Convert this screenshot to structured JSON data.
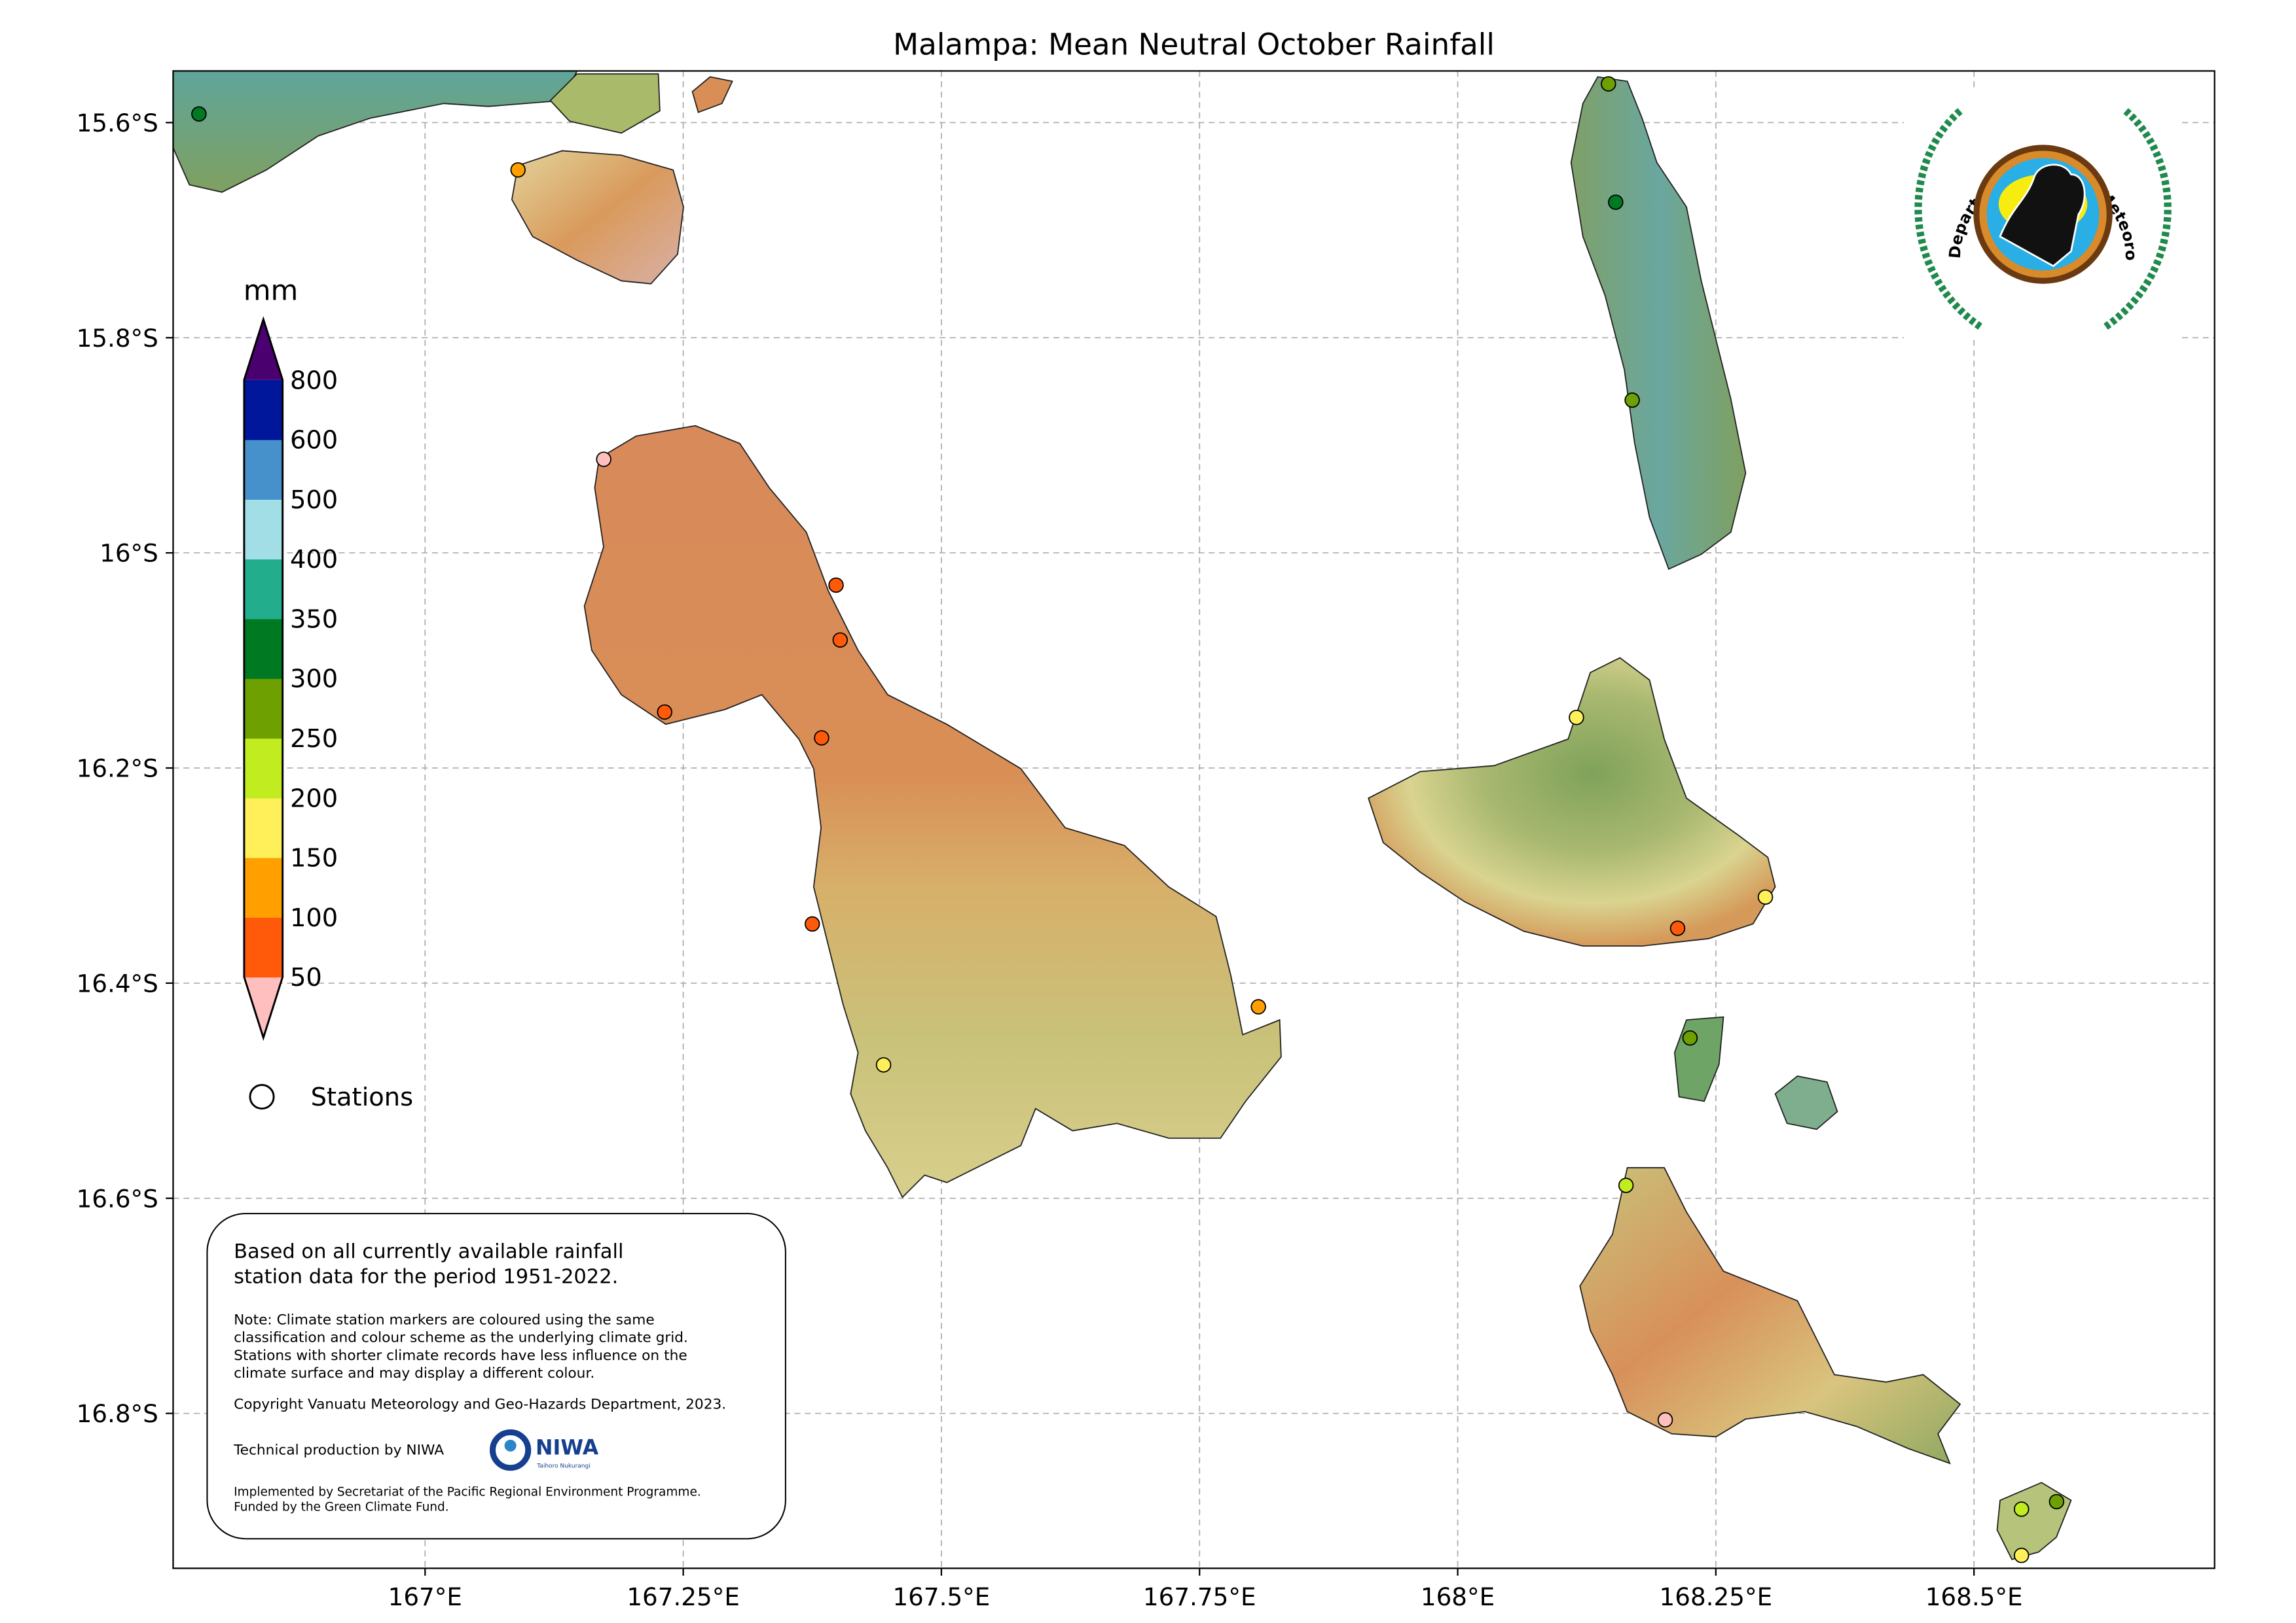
{
  "title": "Malampa: Mean Neutral October Rainfall",
  "axes": {
    "lon_ticks": [
      {
        "value": 167.0,
        "label": "167°E"
      },
      {
        "value": 167.25,
        "label": "167.25°E"
      },
      {
        "value": 167.5,
        "label": "167.5°E"
      },
      {
        "value": 167.75,
        "label": "167.75°E"
      },
      {
        "value": 168.0,
        "label": "168°E"
      },
      {
        "value": 168.25,
        "label": "168.25°E"
      },
      {
        "value": 168.5,
        "label": "168.5°E"
      }
    ],
    "lat_ticks": [
      {
        "value": 15.6,
        "label": "15.6°S"
      },
      {
        "value": 15.8,
        "label": "15.8°S"
      },
      {
        "value": 16.0,
        "label": "16°S"
      },
      {
        "value": 16.2,
        "label": "16.2°S"
      },
      {
        "value": 16.4,
        "label": "16.4°S"
      },
      {
        "value": 16.6,
        "label": "16.6°S"
      },
      {
        "value": 16.8,
        "label": "16.8°S"
      }
    ],
    "lon_range": [
      166.756,
      168.733
    ],
    "lat_range": [
      15.552,
      16.944
    ],
    "grid": true
  },
  "colorbar": {
    "unit": "mm",
    "labels": [
      "50",
      "100",
      "150",
      "200",
      "250",
      "300",
      "350",
      "400",
      "500",
      "600",
      "800"
    ],
    "colors": [
      "#ffbfbf",
      "#ff5a0a",
      "#ff9f00",
      "#fff05a",
      "#c0ec20",
      "#6da000",
      "#007a22",
      "#22ad8c",
      "#a1dee6",
      "#4690cc",
      "#00179c",
      "#4b0070"
    ],
    "extend": "both"
  },
  "legend": {
    "stations_label": "Stations"
  },
  "stations": [
    {
      "lon": 166.781,
      "lat": 15.592,
      "color": "#007a22"
    },
    {
      "lon": 167.09,
      "lat": 15.644,
      "color": "#ff9f00"
    },
    {
      "lon": 167.173,
      "lat": 15.913,
      "color": "#ffbfbf"
    },
    {
      "lon": 167.398,
      "lat": 16.03,
      "color": "#ff5a0a"
    },
    {
      "lon": 167.402,
      "lat": 16.081,
      "color": "#ff5a0a"
    },
    {
      "lon": 167.232,
      "lat": 16.148,
      "color": "#ff5a0a"
    },
    {
      "lon": 167.384,
      "lat": 16.172,
      "color": "#ff5a0a"
    },
    {
      "lon": 167.375,
      "lat": 16.345,
      "color": "#ff5a0a"
    },
    {
      "lon": 167.807,
      "lat": 16.422,
      "color": "#ff9f00"
    },
    {
      "lon": 167.444,
      "lat": 16.476,
      "color": "#fff05a"
    },
    {
      "lon": 168.146,
      "lat": 15.564,
      "color": "#6da000"
    },
    {
      "lon": 168.153,
      "lat": 15.674,
      "color": "#007a22"
    },
    {
      "lon": 168.169,
      "lat": 15.858,
      "color": "#6da000"
    },
    {
      "lon": 168.115,
      "lat": 16.153,
      "color": "#fff05a"
    },
    {
      "lon": 168.298,
      "lat": 16.32,
      "color": "#fff05a"
    },
    {
      "lon": 168.213,
      "lat": 16.349,
      "color": "#ff5a0a"
    },
    {
      "lon": 168.225,
      "lat": 16.451,
      "color": "#6da000"
    },
    {
      "lon": 168.163,
      "lat": 16.588,
      "color": "#c0ec20"
    },
    {
      "lon": 168.201,
      "lat": 16.806,
      "color": "#ffbfbf"
    },
    {
      "lon": 168.546,
      "lat": 16.889,
      "color": "#c0ec20"
    },
    {
      "lon": 168.58,
      "lat": 16.882,
      "color": "#6da000"
    },
    {
      "lon": 168.546,
      "lat": 16.932,
      "color": "#fff05a"
    }
  ],
  "infobox": {
    "heading_line1": "Based on all currently available rainfall",
    "heading_line2": "station data for the period 1951-2022.",
    "note_lines": [
      "Note: Climate station markers are coloured using the same",
      "classification and colour scheme as the underlying climate grid.",
      "Stations with shorter climate records have less influence on the",
      "climate surface and may display a different colour."
    ],
    "copyright": "Copyright Vanuatu Meteorology and Geo-Hazards Department, 2023.",
    "production": "Technical production by NIWA",
    "niwa_logo_text": "NIWA",
    "niwa_logo_subtext": "Taihoro Nukurangi",
    "funding_line1": "Implemented by Secretariat of the Pacific Regional Environment Programme.",
    "funding_line2": "Funded by the Green Climate Fund."
  },
  "logo": {
    "text": "Department Vanuatu Meteorology and Geo-Hazards"
  }
}
